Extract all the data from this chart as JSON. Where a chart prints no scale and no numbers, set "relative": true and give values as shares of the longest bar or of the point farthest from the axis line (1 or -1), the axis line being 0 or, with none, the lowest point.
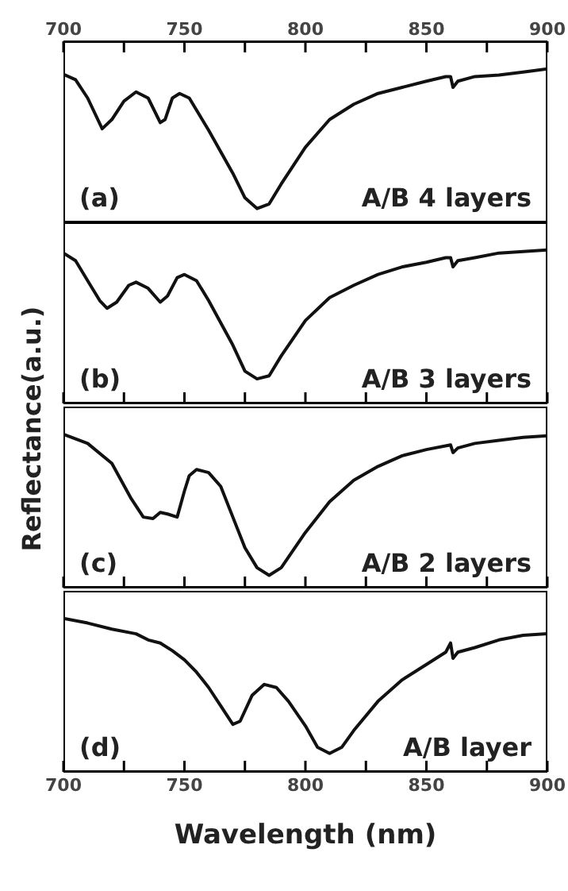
{
  "chart_data": [
    {
      "type": "line",
      "relative": true,
      "ylabel": "Reflectance(a.u.)",
      "xlim": [
        700,
        900
      ],
      "xticks": [
        700,
        {
          "value": 725,
          "label": null
        },
        750,
        {
          "value": 775,
          "label": null
        },
        800,
        {
          "value": 825,
          "label": null
        },
        850,
        {
          "value": 875,
          "label": null
        },
        900
      ],
      "tick_labels": "x",
      "annotations": [
        "(a)",
        "A/B 4 layers"
      ],
      "series": [
        {
          "color": "#111111",
          "x": [
            700,
            705,
            710,
            716,
            720,
            725,
            730,
            735,
            740,
            742,
            745,
            748,
            752,
            760,
            770,
            775,
            780,
            785,
            790,
            800,
            810,
            820,
            830,
            840,
            850,
            858,
            860,
            861,
            863,
            870,
            880,
            890,
            900
          ],
          "values": [
            0.965,
            0.93,
            0.81,
            0.61,
            0.67,
            0.79,
            0.85,
            0.81,
            0.65,
            0.67,
            0.81,
            0.84,
            0.81,
            0.6,
            0.32,
            0.16,
            0.09,
            0.12,
            0.25,
            0.49,
            0.67,
            0.77,
            0.84,
            0.88,
            0.92,
            0.95,
            0.95,
            0.88,
            0.92,
            0.95,
            0.96,
            0.98,
            1
          ]
        }
      ]
    },
    {
      "type": "line",
      "relative": true,
      "xlim": [
        700,
        900
      ],
      "xticks": [
        {
          "value": 700,
          "label": null
        },
        {
          "value": 725,
          "label": null
        },
        {
          "value": 750,
          "label": null
        },
        {
          "value": 775,
          "label": null
        },
        {
          "value": 800,
          "label": null
        },
        {
          "value": 825,
          "label": null
        },
        {
          "value": 850,
          "label": null
        },
        {
          "value": 875,
          "label": null
        },
        {
          "value": 900,
          "label": null
        }
      ],
      "tick_labels": false,
      "annotations": [
        "(b)",
        "A/B 3 layers"
      ],
      "series": [
        {
          "color": "#111111",
          "x": [
            700,
            705,
            710,
            715,
            718,
            722,
            727,
            730,
            735,
            740,
            743,
            747,
            750,
            755,
            760,
            770,
            775,
            780,
            785,
            790,
            800,
            810,
            820,
            830,
            840,
            850,
            858,
            860,
            861,
            863,
            870,
            880,
            890,
            900
          ],
          "values": [
            0.98,
            0.93,
            0.8,
            0.67,
            0.62,
            0.66,
            0.77,
            0.79,
            0.75,
            0.66,
            0.7,
            0.82,
            0.84,
            0.8,
            0.67,
            0.38,
            0.21,
            0.16,
            0.18,
            0.31,
            0.54,
            0.69,
            0.77,
            0.84,
            0.89,
            0.92,
            0.95,
            0.95,
            0.89,
            0.93,
            0.95,
            0.98,
            0.99,
            1
          ]
        }
      ]
    },
    {
      "type": "line",
      "relative": true,
      "xlim": [
        700,
        900
      ],
      "xticks": [
        {
          "value": 700,
          "label": null
        },
        {
          "value": 725,
          "label": null
        },
        {
          "value": 750,
          "label": null
        },
        {
          "value": 775,
          "label": null
        },
        {
          "value": 800,
          "label": null
        },
        {
          "value": 825,
          "label": null
        },
        {
          "value": 850,
          "label": null
        },
        {
          "value": 875,
          "label": null
        },
        {
          "value": 900,
          "label": null
        }
      ],
      "tick_labels": false,
      "annotations": [
        "(c)",
        "A/B 2 layers"
      ],
      "series": [
        {
          "color": "#111111",
          "x": [
            700,
            710,
            720,
            728,
            733,
            737,
            740,
            743,
            747,
            750,
            752,
            755,
            760,
            765,
            770,
            775,
            780,
            785,
            790,
            800,
            810,
            820,
            830,
            840,
            850,
            860,
            861,
            863,
            870,
            880,
            890,
            900
          ],
          "values": [
            1,
            0.94,
            0.81,
            0.58,
            0.46,
            0.45,
            0.49,
            0.48,
            0.46,
            0.63,
            0.73,
            0.77,
            0.75,
            0.66,
            0.46,
            0.26,
            0.13,
            0.08,
            0.13,
            0.36,
            0.56,
            0.7,
            0.79,
            0.86,
            0.9,
            0.93,
            0.88,
            0.91,
            0.94,
            0.96,
            0.98,
            0.99
          ]
        }
      ]
    },
    {
      "type": "line",
      "relative": true,
      "xlabel": "Wavelength (nm)",
      "xlim": [
        700,
        900
      ],
      "xticks": [
        700,
        {
          "value": 725,
          "label": null
        },
        750,
        {
          "value": 775,
          "label": null
        },
        800,
        {
          "value": 825,
          "label": null
        },
        850,
        {
          "value": 875,
          "label": null
        },
        900
      ],
      "tick_labels": "x",
      "annotations": [
        "(d)",
        "A/B layer"
      ],
      "series": [
        {
          "color": "#111111",
          "x": [
            700,
            710,
            720,
            730,
            735,
            740,
            745,
            750,
            755,
            760,
            765,
            770,
            773,
            778,
            783,
            788,
            793,
            800,
            805,
            810,
            815,
            820,
            830,
            840,
            850,
            858,
            860,
            861,
            863,
            870,
            880,
            890,
            900
          ],
          "values": [
            1,
            0.97,
            0.93,
            0.9,
            0.86,
            0.84,
            0.79,
            0.73,
            0.65,
            0.55,
            0.43,
            0.31,
            0.33,
            0.5,
            0.57,
            0.55,
            0.46,
            0.3,
            0.16,
            0.12,
            0.16,
            0.27,
            0.46,
            0.6,
            0.7,
            0.78,
            0.84,
            0.74,
            0.78,
            0.81,
            0.86,
            0.89,
            0.9
          ]
        }
      ]
    }
  ]
}
